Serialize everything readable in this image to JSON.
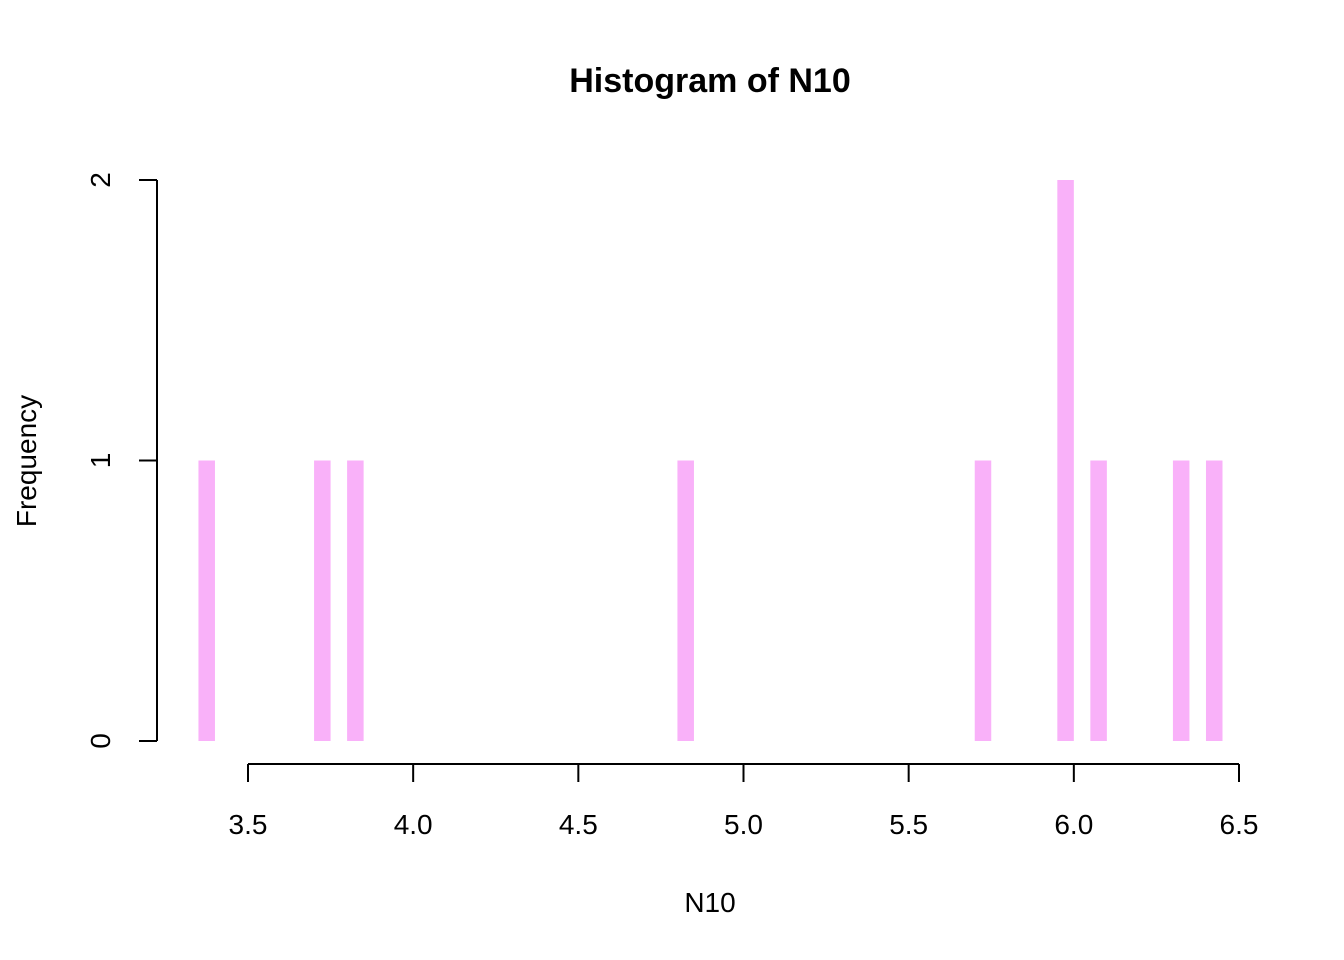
{
  "chart_data": {
    "type": "bar",
    "title": "Histogram of N10",
    "xlabel": "N10",
    "ylabel": "Frequency",
    "xlim": [
      3.5,
      6.5
    ],
    "ylim": [
      0,
      2
    ],
    "x_ticks": [
      "3.5",
      "4.0",
      "4.5",
      "5.0",
      "5.5",
      "6.0",
      "6.5"
    ],
    "x_tick_values": [
      3.5,
      4.0,
      4.5,
      5.0,
      5.5,
      6.0,
      6.5
    ],
    "y_ticks": [
      "0",
      "1",
      "2"
    ],
    "y_tick_values": [
      0,
      1,
      2
    ],
    "bar_color": "#F9B1F9",
    "grid": false,
    "bins": [
      {
        "x0": 3.35,
        "x1": 3.4,
        "count": 1
      },
      {
        "x0": 3.7,
        "x1": 3.75,
        "count": 1
      },
      {
        "x0": 3.8,
        "x1": 3.85,
        "count": 1
      },
      {
        "x0": 4.8,
        "x1": 4.85,
        "count": 1
      },
      {
        "x0": 5.7,
        "x1": 5.75,
        "count": 1
      },
      {
        "x0": 5.95,
        "x1": 6.0,
        "count": 2
      },
      {
        "x0": 6.05,
        "x1": 6.1,
        "count": 1
      },
      {
        "x0": 6.3,
        "x1": 6.35,
        "count": 1
      },
      {
        "x0": 6.4,
        "x1": 6.45,
        "count": 1
      }
    ]
  }
}
